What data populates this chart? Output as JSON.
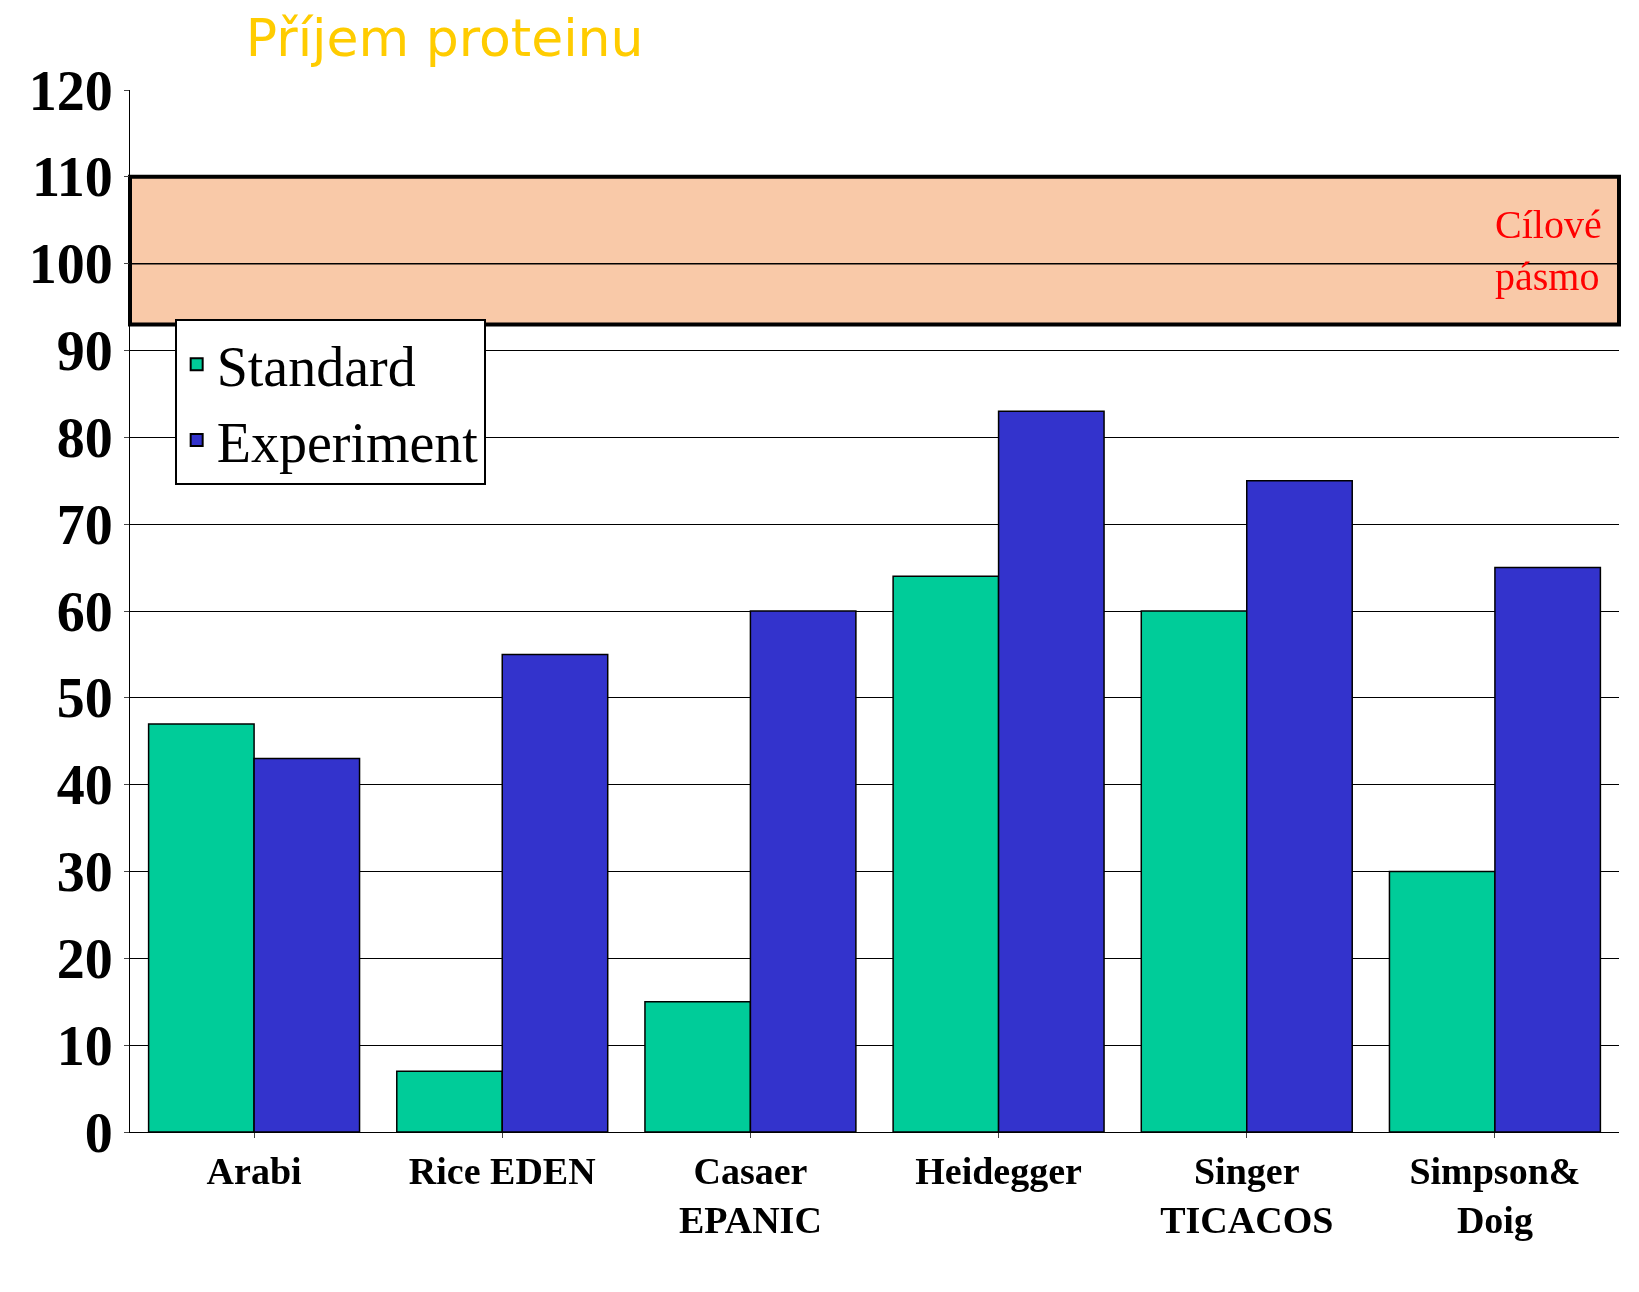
{
  "chart_data": {
    "type": "bar",
    "title": "Příjem proteinu",
    "categories": [
      "Arabi",
      "Rice EDEN",
      "Casaer\nEPANIC",
      "Heidegger",
      "Singer\nTICACOS",
      "Simpson&\nDoig"
    ],
    "series": [
      {
        "name": "Standard",
        "color": "#00cc99",
        "values": [
          47,
          7,
          15,
          64,
          60,
          30
        ]
      },
      {
        "name": "Experiment",
        "color": "#3333cc",
        "values": [
          43,
          55,
          60,
          83,
          75,
          65
        ]
      }
    ],
    "ylim": [
      0,
      120
    ],
    "yticks": [
      0,
      10,
      20,
      30,
      40,
      50,
      60,
      70,
      80,
      90,
      100,
      110,
      120
    ],
    "bands": [
      {
        "axis": "y",
        "from": 93,
        "to": 110,
        "label": "Cílové\npásmo",
        "color": "#f9c9a8"
      }
    ],
    "ref_lines": [
      {
        "axis": "y",
        "value": 100,
        "label": null
      }
    ],
    "grid": "y",
    "legend": "top left"
  }
}
